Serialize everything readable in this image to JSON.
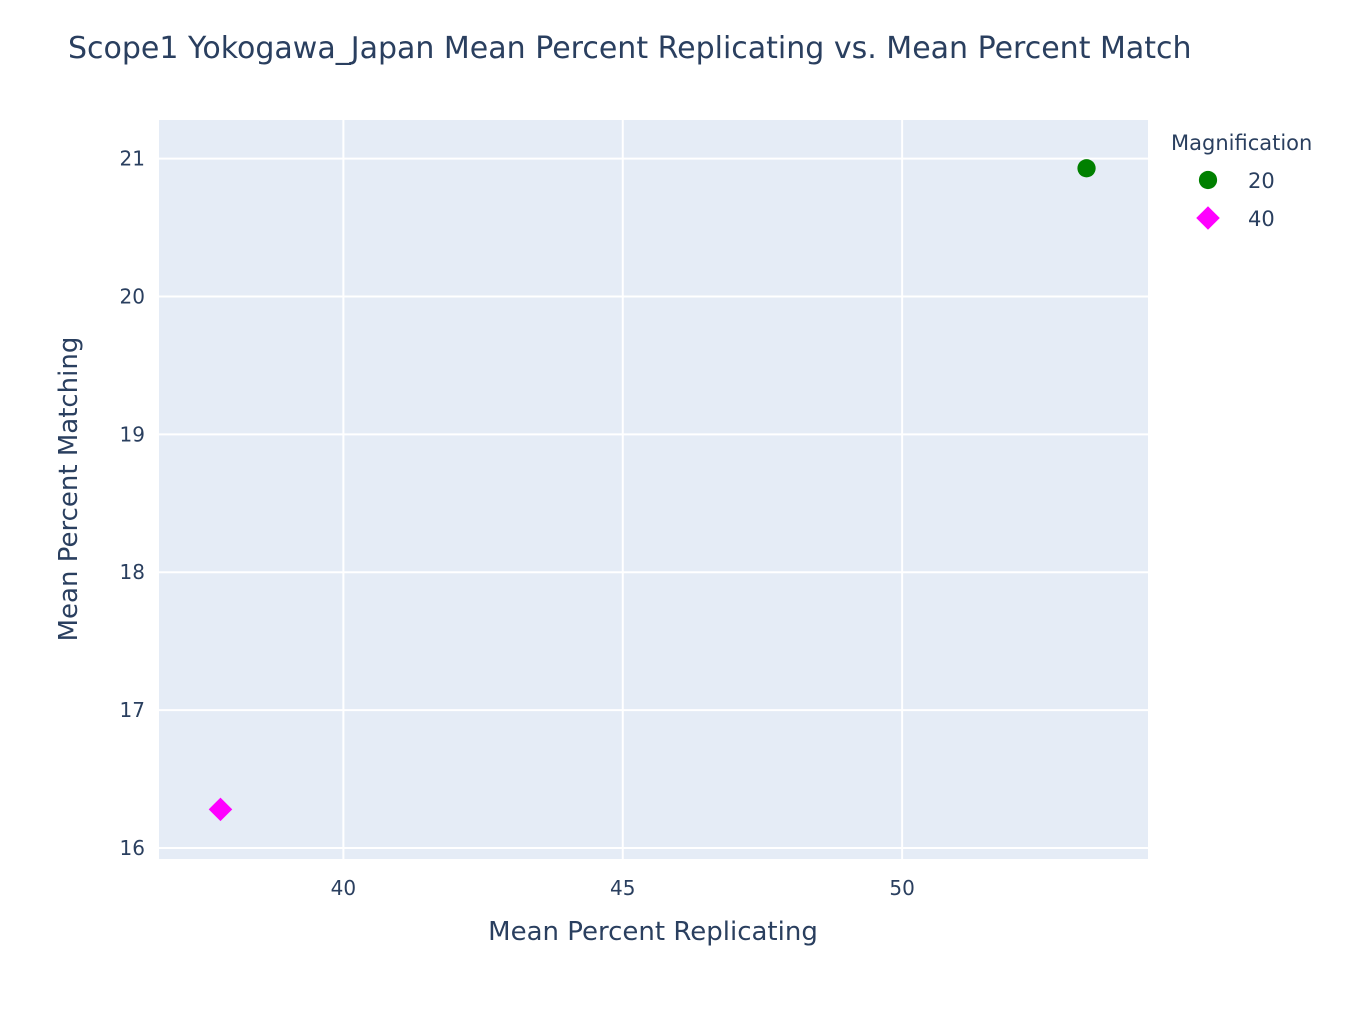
{
  "chart_data": {
    "type": "scatter",
    "title": "Scope1 Yokogawa_Japan Mean Percent Replicating vs. Mean Percent Match",
    "xlabel": "Mean Percent Replicating",
    "ylabel": "Mean Percent Matching",
    "xlim": [
      36.7,
      54.4
    ],
    "ylim": [
      15.92,
      21.28
    ],
    "x_ticks": [
      40,
      45,
      50
    ],
    "y_ticks": [
      16,
      17,
      18,
      19,
      20,
      21
    ],
    "grid": true,
    "plot_background": "#e5ecf6",
    "legend": {
      "title": "Magnification",
      "placement": "top-right-outside"
    },
    "series": [
      {
        "name": "20",
        "color": "#008000",
        "symbol": "circle",
        "points": [
          {
            "x": 53.3,
            "y": 20.93
          }
        ]
      },
      {
        "name": "40",
        "color": "#ff00ff",
        "symbol": "diamond",
        "points": [
          {
            "x": 37.8,
            "y": 16.28
          }
        ]
      }
    ]
  }
}
